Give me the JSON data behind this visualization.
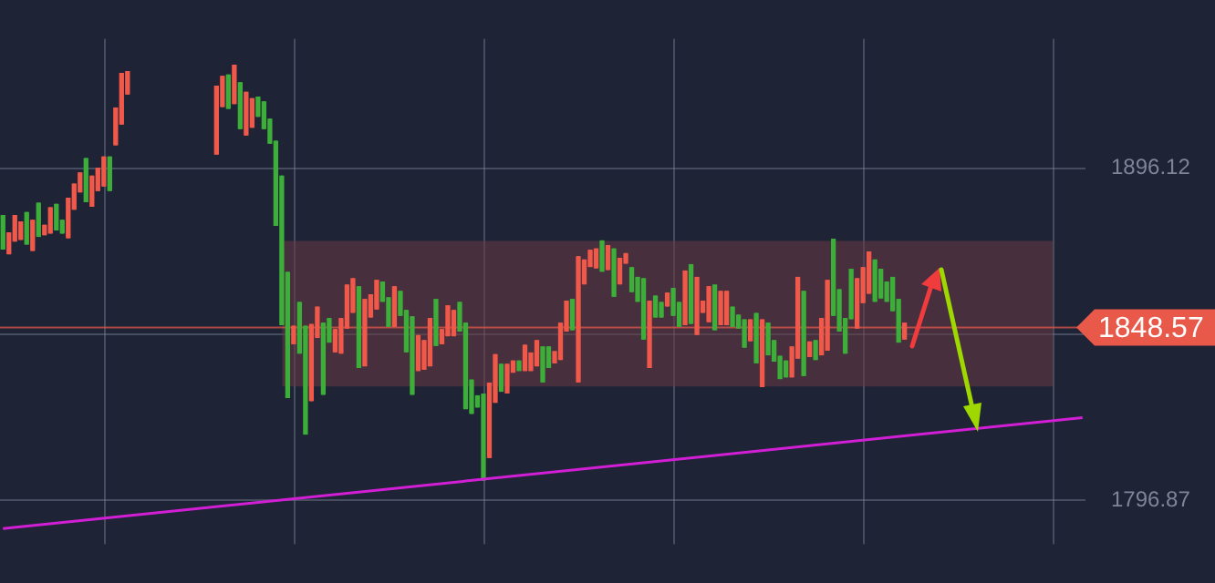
{
  "chart_data": {
    "type": "candlestick",
    "tick_labels": "y",
    "grid": true,
    "categories": [
      null,
      null,
      null,
      null,
      null,
      null,
      null,
      null,
      null,
      null,
      null,
      null,
      null,
      null,
      null,
      null,
      null,
      null,
      null,
      null,
      null,
      null,
      null,
      null,
      null,
      null,
      null,
      null,
      null,
      null,
      null,
      null,
      null,
      null,
      null,
      null,
      null,
      null,
      null,
      null,
      null,
      null,
      null,
      null,
      null,
      null,
      null,
      null,
      null,
      null,
      null,
      null,
      null,
      null,
      null,
      null,
      null,
      null,
      null,
      null,
      null,
      null,
      null,
      null,
      null,
      null,
      null,
      null,
      null,
      null,
      null,
      null,
      null,
      null,
      null,
      null,
      null,
      null,
      null,
      null,
      null,
      null,
      null,
      null,
      null,
      null,
      null,
      null,
      null,
      null,
      null,
      null,
      null,
      null,
      null,
      null,
      null,
      null,
      null,
      null,
      null,
      null,
      null,
      null,
      null,
      null,
      null,
      null,
      null,
      null,
      null,
      null,
      null,
      null,
      null,
      null,
      null,
      null,
      null,
      null,
      null,
      null,
      null,
      null,
      null,
      null,
      null,
      null,
      null,
      null,
      null,
      null,
      null,
      null,
      null,
      null,
      null,
      null,
      null,
      null,
      null,
      null,
      null,
      null,
      null,
      null,
      null,
      null,
      null,
      null,
      null,
      null,
      null,
      null,
      null,
      null,
      null,
      null,
      null,
      null,
      null,
      null,
      null,
      null,
      null,
      null,
      null,
      null,
      null,
      null,
      null,
      null,
      null,
      null,
      null,
      null,
      null,
      null,
      null,
      null,
      null,
      null,
      null
    ],
    "ohlc": [
      [
        1882.0,
        1882.0,
        1872.0,
        1872.0
      ],
      [
        1870.6,
        1876.8,
        1870.6,
        1876.8
      ],
      [
        1874.4,
        1882.0,
        1874.4,
        1882.0
      ],
      [
        1874.9,
        1880.1,
        1874.9,
        1880.1
      ],
      [
        1882.9,
        1882.9,
        1873.5,
        1873.5
      ],
      [
        1871.6,
        1880.6,
        1871.6,
        1880.6
      ],
      [
        1885.7,
        1885.7,
        1875.8,
        1875.8
      ],
      [
        1876.3,
        1879.1,
        1876.3,
        1879.1
      ],
      [
        1876.8,
        1884.3,
        1876.8,
        1884.3
      ],
      [
        1885.3,
        1885.3,
        1877.7,
        1877.7
      ],
      [
        1880.6,
        1880.6,
        1876.8,
        1876.8
      ],
      [
        1875.4,
        1887.2,
        1875.4,
        1887.2
      ],
      [
        1883.9,
        1891.4,
        1883.9,
        1891.4
      ],
      [
        1889.1,
        1894.7,
        1889.1,
        1894.7
      ],
      [
        1899.0,
        1899.0,
        1886.2,
        1886.2
      ],
      [
        1884.8,
        1893.8,
        1884.8,
        1893.8
      ],
      [
        1889.5,
        1896.1,
        1889.5,
        1896.1
      ],
      [
        1890.9,
        1899.5,
        1890.9,
        1899.5
      ],
      [
        1899.5,
        1899.5,
        1889.5,
        1889.5
      ],
      [
        1903.2,
        1914.1,
        1903.2,
        1914.1
      ],
      [
        1909.4,
        1924.5,
        1909.4,
        1924.5
      ],
      [
        1918.4,
        1925.0,
        1918.4,
        1925.0
      ],
      null,
      null,
      null,
      null,
      null,
      null,
      null,
      null,
      null,
      null,
      null,
      null,
      null,
      null,
      [
        1900.4,
        1920.7,
        1900.4,
        1920.7
      ],
      [
        1914.6,
        1923.6,
        1914.6,
        1923.6
      ],
      [
        1924.0,
        1924.0,
        1914.1,
        1914.1
      ],
      [
        1915.5,
        1926.9,
        1915.5,
        1926.9
      ],
      [
        1921.7,
        1921.7,
        1908.0,
        1908.0
      ],
      [
        1906.1,
        1918.8,
        1906.1,
        1918.8
      ],
      [
        1908.4,
        1916.9,
        1908.4,
        1916.9
      ],
      [
        1917.4,
        1917.4,
        1911.7,
        1911.7
      ],
      [
        1916.0,
        1916.0,
        1908.0,
        1908.0
      ],
      [
        1910.8,
        1910.8,
        1903.7,
        1903.7
      ],
      [
        1904.2,
        1904.2,
        1879.1,
        1879.1
      ],
      [
        1893.8,
        1893.8,
        1849.4,
        1849.4
      ],
      [
        1865.0,
        1865.0,
        1827.6,
        1827.6
      ],
      [
        1843.7,
        1848.9,
        1843.7,
        1848.9
      ],
      [
        1856.0,
        1856.0,
        1840.9,
        1840.9
      ],
      [
        1848.9,
        1848.9,
        1816.7,
        1816.7
      ],
      [
        1826.7,
        1849.4,
        1826.7,
        1849.4
      ],
      [
        1845.6,
        1854.6,
        1845.6,
        1854.6
      ],
      [
        1849.8,
        1849.8,
        1828.6,
        1828.6
      ],
      [
        1851.2,
        1851.2,
        1844.2,
        1844.2
      ],
      [
        1841.3,
        1847.9,
        1841.3,
        1847.9
      ],
      [
        1840.9,
        1851.2,
        1840.9,
        1851.2
      ],
      [
        1848.4,
        1861.2,
        1848.4,
        1861.2
      ],
      [
        1853.1,
        1863.1,
        1853.1,
        1863.1
      ],
      [
        1860.7,
        1860.7,
        1836.6,
        1836.6
      ],
      [
        1837.1,
        1856.9,
        1837.1,
        1856.9
      ],
      [
        1851.7,
        1858.3,
        1851.7,
        1858.3
      ],
      [
        1854.1,
        1862.6,
        1854.1,
        1862.6
      ],
      [
        1862.1,
        1862.1,
        1856.4,
        1856.4
      ],
      [
        1857.4,
        1857.4,
        1848.9,
        1848.9
      ],
      [
        1848.9,
        1860.7,
        1848.9,
        1860.7
      ],
      [
        1859.3,
        1859.3,
        1852.2,
        1852.2
      ],
      [
        1853.6,
        1853.6,
        1841.3,
        1841.3
      ],
      [
        1851.7,
        1851.7,
        1828.6,
        1828.6
      ],
      [
        1835.7,
        1846.1,
        1835.7,
        1846.1
      ],
      [
        1836.1,
        1844.6,
        1836.1,
        1844.6
      ],
      [
        1837.1,
        1851.2,
        1837.1,
        1851.2
      ],
      [
        1856.9,
        1856.9,
        1843.2,
        1843.2
      ],
      [
        1843.7,
        1847.9,
        1843.7,
        1847.9
      ],
      [
        1846.1,
        1855.0,
        1846.1,
        1855.0
      ],
      [
        1846.1,
        1853.6,
        1846.1,
        1853.6
      ],
      [
        1856.0,
        1856.0,
        1847.5,
        1847.5
      ],
      [
        1849.8,
        1849.8,
        1824.3,
        1824.3
      ],
      [
        1832.8,
        1832.8,
        1822.9,
        1822.9
      ],
      [
        1828.1,
        1828.1,
        1824.8,
        1824.8
      ],
      [
        1828.6,
        1828.6,
        1803.0,
        1803.0
      ],
      [
        1809.7,
        1831.9,
        1809.7,
        1831.9
      ],
      [
        1826.2,
        1840.4,
        1826.2,
        1840.4
      ],
      [
        1837.5,
        1837.5,
        1829.5,
        1829.5
      ],
      [
        1829.0,
        1837.5,
        1829.0,
        1837.5
      ],
      [
        1835.2,
        1838.5,
        1835.2,
        1838.5
      ],
      [
        1838.5,
        1838.5,
        1835.7,
        1835.7
      ],
      [
        1835.7,
        1843.2,
        1835.7,
        1843.2
      ],
      [
        1835.7,
        1840.9,
        1835.7,
        1840.9
      ],
      [
        1837.1,
        1844.6,
        1837.1,
        1844.6
      ],
      [
        1842.7,
        1842.7,
        1832.3,
        1832.3
      ],
      [
        1842.7,
        1842.7,
        1836.6,
        1836.6
      ],
      [
        1838.0,
        1841.3,
        1838.0,
        1841.3
      ],
      [
        1839.0,
        1849.8,
        1839.0,
        1849.8
      ],
      [
        1847.5,
        1856.4,
        1847.5,
        1856.4
      ],
      [
        1856.9,
        1856.9,
        1847.9,
        1847.9
      ],
      [
        1832.3,
        1869.7,
        1832.3,
        1869.7
      ],
      [
        1861.6,
        1868.7,
        1861.6,
        1868.7
      ],
      [
        1866.8,
        1871.6,
        1866.8,
        1871.6
      ],
      [
        1866.4,
        1872.0,
        1866.4,
        1872.0
      ],
      [
        1874.4,
        1874.4,
        1865.4,
        1865.4
      ],
      [
        1865.9,
        1873.0,
        1865.9,
        1873.0
      ],
      [
        1872.0,
        1872.0,
        1857.9,
        1857.9
      ],
      [
        1861.6,
        1869.2,
        1861.6,
        1869.2
      ],
      [
        1867.8,
        1870.6,
        1867.8,
        1870.6
      ],
      [
        1866.4,
        1866.4,
        1859.3,
        1859.3
      ],
      [
        1863.5,
        1863.5,
        1856.4,
        1856.4
      ],
      [
        1863.1,
        1863.1,
        1845.1,
        1845.1
      ],
      [
        1836.6,
        1856.4,
        1836.6,
        1856.4
      ],
      [
        1857.9,
        1857.9,
        1851.7,
        1851.7
      ],
      [
        1856.0,
        1856.0,
        1851.7,
        1851.7
      ],
      [
        1855.0,
        1858.8,
        1855.0,
        1858.8
      ],
      [
        1860.2,
        1860.2,
        1852.2,
        1852.2
      ],
      [
        1856.0,
        1856.0,
        1848.9,
        1848.9
      ],
      [
        1849.4,
        1865.4,
        1849.4,
        1865.4
      ],
      [
        1867.3,
        1867.3,
        1849.8,
        1849.8
      ],
      [
        1846.5,
        1863.5,
        1846.5,
        1863.5
      ],
      [
        1853.1,
        1856.4,
        1853.1,
        1856.4
      ],
      [
        1850.3,
        1860.7,
        1850.3,
        1860.7
      ],
      [
        1861.2,
        1861.2,
        1847.9,
        1847.9
      ],
      [
        1849.4,
        1859.3,
        1849.4,
        1859.3
      ],
      [
        1849.4,
        1859.3,
        1849.4,
        1859.3
      ],
      [
        1854.6,
        1854.6,
        1848.9,
        1848.9
      ],
      [
        1852.2,
        1852.2,
        1848.4,
        1848.4
      ],
      [
        1850.8,
        1850.8,
        1842.7,
        1842.7
      ],
      [
        1844.6,
        1850.8,
        1844.6,
        1850.8
      ],
      [
        1852.7,
        1852.7,
        1838.0,
        1838.0
      ],
      [
        1830.9,
        1850.8,
        1830.9,
        1850.8
      ],
      [
        1849.8,
        1849.8,
        1840.4,
        1840.4
      ],
      [
        1844.6,
        1844.6,
        1838.5,
        1838.5
      ],
      [
        1839.9,
        1839.9,
        1833.3,
        1833.3
      ],
      [
        1838.5,
        1838.5,
        1833.8,
        1833.8
      ],
      [
        1833.8,
        1842.7,
        1833.8,
        1842.7
      ],
      [
        1839.4,
        1863.5,
        1839.4,
        1863.5
      ],
      [
        1859.3,
        1859.3,
        1834.2,
        1834.2
      ],
      [
        1839.9,
        1844.2,
        1839.9,
        1844.2
      ],
      [
        1844.6,
        1844.6,
        1839.0,
        1839.0
      ],
      [
        1840.4,
        1851.2,
        1840.4,
        1851.2
      ],
      [
        1841.8,
        1862.6,
        1841.8,
        1862.6
      ],
      [
        1874.9,
        1874.9,
        1852.2,
        1852.2
      ],
      [
        1859.8,
        1859.8,
        1847.5,
        1847.5
      ],
      [
        1851.2,
        1851.2,
        1840.9,
        1840.9
      ],
      [
        1865.9,
        1865.9,
        1851.2,
        1851.2
      ],
      [
        1848.4,
        1863.1,
        1848.4,
        1863.1
      ],
      [
        1856.0,
        1866.4,
        1856.0,
        1866.4
      ],
      [
        1858.8,
        1871.1,
        1858.8,
        1871.1
      ],
      [
        1868.7,
        1868.7,
        1856.4,
        1856.4
      ],
      [
        1865.9,
        1865.9,
        1857.4,
        1857.4
      ],
      [
        1862.1,
        1862.1,
        1856.4,
        1856.4
      ],
      [
        1863.5,
        1863.5,
        1853.6,
        1853.6
      ],
      [
        1856.9,
        1856.9,
        1844.2,
        1844.2
      ],
      [
        1845.1,
        1849.8,
        1845.1,
        1849.8
      ],
      null,
      null,
      null,
      null,
      null,
      null,
      null,
      null,
      null,
      null,
      null,
      null,
      null,
      null,
      null,
      null,
      null,
      null,
      null,
      null,
      null,
      null,
      null,
      null,
      null,
      null,
      null,
      null,
      null,
      null
    ],
    "colors": [
      "#3dae3a",
      "#f0584a",
      "#f0584a",
      "#f0584a",
      "#3dae3a",
      "#f0584a",
      "#3dae3a",
      "#f0584a",
      "#f0584a",
      "#3dae3a",
      "#3dae3a",
      "#f0584a",
      "#f0584a",
      "#f0584a",
      "#3dae3a",
      "#f0584a",
      "#f0584a",
      "#f0584a",
      "#3dae3a",
      "#f0584a",
      "#f0584a",
      "#f0584a",
      "#f0584a",
      "#f0584a",
      "#3dae3a",
      null,
      null,
      null,
      null,
      null,
      null,
      null,
      null,
      null,
      null,
      "#3dae3a",
      "#f0584a",
      "#f0584a",
      "#3dae3a",
      "#f0584a",
      "#3dae3a",
      "#f0584a",
      "#f0584a",
      "#3dae3a",
      "#3dae3a",
      "#3dae3a",
      "#3dae3a",
      "#3dae3a",
      "#3dae3a",
      "#f0584a",
      "#3dae3a",
      "#3dae3a",
      "#f0584a",
      "#f0584a",
      "#3dae3a",
      "#3dae3a",
      "#f0584a",
      "#f0584a",
      "#f0584a",
      "#f0584a",
      "#3dae3a",
      "#f0584a",
      "#f0584a",
      "#f0584a",
      "#3dae3a",
      "#3dae3a",
      "#f0584a",
      "#3dae3a",
      "#3dae3a",
      "#3dae3a",
      "#f0584a",
      "#f0584a",
      "#f0584a",
      "#3dae3a",
      "#f0584a",
      "#f0584a",
      "#f0584a",
      "#3dae3a",
      "#3dae3a",
      "#3dae3a",
      "#3dae3a",
      "#3dae3a",
      "#f0584a",
      "#f0584a",
      "#3dae3a",
      "#f0584a",
      "#f0584a",
      "#3dae3a",
      "#f0584a",
      "#f0584a",
      "#f0584a",
      "#3dae3a",
      "#3dae3a",
      "#f0584a",
      "#f0584a",
      "#f0584a",
      "#3dae3a",
      "#f0584a",
      "#f0584a",
      "#f0584a",
      "#f0584a",
      "#3dae3a",
      "#f0584a",
      "#3dae3a",
      "#f0584a",
      "#f0584a",
      "#3dae3a",
      "#3dae3a",
      "#3dae3a",
      "#f0584a",
      "#3dae3a",
      "#3dae3a",
      "#f0584a",
      "#3dae3a",
      "#3dae3a",
      "#f0584a",
      "#3dae3a",
      "#f0584a",
      "#f0584a",
      "#f0584a",
      "#3dae3a",
      "#f0584a",
      "#f0584a",
      "#3dae3a",
      "#3dae3a",
      "#3dae3a",
      "#f0584a",
      "#3dae3a",
      "#f0584a",
      "#3dae3a",
      "#3dae3a",
      "#3dae3a",
      "#3dae3a",
      "#f0584a",
      "#f0584a",
      "#3dae3a",
      "#f0584a",
      "#3dae3a",
      "#f0584a",
      "#f0584a",
      "#3dae3a",
      "#3dae3a",
      "#3dae3a",
      "#3dae3a",
      "#f0584a",
      "#f0584a",
      "#f0584a",
      "#3dae3a",
      "#3dae3a",
      "#3dae3a",
      "#3dae3a",
      "#3dae3a",
      "#f0584a",
      null,
      null,
      null,
      null,
      null,
      null,
      null,
      null,
      null,
      null,
      null,
      null,
      null,
      null,
      null,
      null,
      null,
      null,
      null,
      null,
      null,
      null,
      null,
      null,
      null,
      null,
      null,
      null,
      null,
      null
    ],
    "series": [
      {
        "type": "line",
        "color": "#d21fd6",
        "values": [
          1788.4,
          null,
          null,
          null,
          null,
          null,
          null,
          null,
          null,
          null,
          null,
          null,
          null,
          null,
          null,
          null,
          null,
          null,
          null,
          null,
          null,
          null,
          null,
          null,
          null,
          null,
          null,
          null,
          null,
          null,
          null,
          null,
          null,
          null,
          null,
          null,
          null,
          null,
          null,
          null,
          null,
          null,
          null,
          null,
          null,
          null,
          null,
          null,
          null,
          null,
          null,
          null,
          null,
          null,
          null,
          null,
          null,
          null,
          null,
          null,
          null,
          null,
          null,
          null,
          null,
          null,
          null,
          null,
          null,
          null,
          null,
          null,
          null,
          null,
          null,
          null,
          null,
          null,
          null,
          null,
          null,
          null,
          null,
          null,
          null,
          null,
          null,
          null,
          null,
          null,
          null,
          null,
          null,
          null,
          null,
          null,
          null,
          null,
          null,
          null,
          null,
          null,
          null,
          null,
          null,
          null,
          null,
          null,
          null,
          null,
          null,
          null,
          null,
          null,
          null,
          null,
          null,
          null,
          null,
          null,
          null,
          null,
          null,
          null,
          null,
          null,
          null,
          null,
          null,
          null,
          null,
          null,
          null,
          null,
          null,
          null,
          null,
          null,
          null,
          null,
          null,
          null,
          null,
          null,
          null,
          null,
          null,
          null,
          null,
          null,
          null,
          null,
          null,
          null,
          null,
          null,
          null,
          null,
          null,
          null,
          null,
          null,
          null,
          null,
          null,
          null,
          null,
          null,
          null,
          null,
          null,
          null,
          null,
          null,
          null,
          null,
          null,
          null,
          null,
          null,
          null,
          null,
          1821.6
        ]
      }
    ],
    "ylim": [
      1783.7,
      1934.9
    ],
    "yticks": [
      1796.87,
      {
        "value": 1846.5,
        "label": null
      },
      1896.12
    ],
    "bands": [
      {
        "axis": "y",
        "from": 1830.9,
        "to": 1874.4,
        "color": "#6a3a44"
      }
    ],
    "ref_lines": [
      {
        "axis": "y",
        "value": 1848.57,
        "label": "1848.57",
        "color": "#e8594a"
      }
    ]
  }
}
